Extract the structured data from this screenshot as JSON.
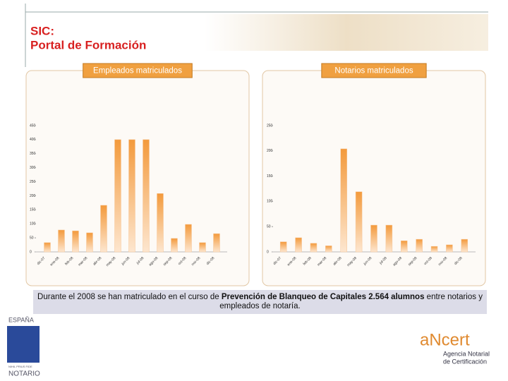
{
  "header": {
    "title": [
      "SIC:",
      "Portal de Formación"
    ]
  },
  "chart_data": [
    {
      "type": "bar",
      "title": "Empleados matriculados",
      "categories": [
        "dic-07",
        "ene-08",
        "feb-08",
        "mar-08",
        "abr-08",
        "may-08",
        "jun-08",
        "jul-08",
        "ago-08",
        "sep-08",
        "oct-08",
        "nov-08",
        "dic-08"
      ],
      "values": [
        33,
        78,
        75,
        68,
        166,
        400,
        400,
        400,
        208,
        48,
        98,
        33,
        65
      ],
      "color": "#f39a3c",
      "ylim": [
        0,
        450
      ],
      "yticks": [
        0,
        50,
        100,
        150,
        200,
        250,
        300,
        350,
        400,
        450
      ]
    },
    {
      "type": "bar",
      "title": "Notarios matriculados",
      "categories": [
        "dic-07",
        "ene-08",
        "feb-08",
        "mar-08",
        "abr-08",
        "may-08",
        "jun-08",
        "jul-08",
        "ago-08",
        "sep-08",
        "oct-08",
        "nov-08",
        "dic-08"
      ],
      "values": [
        20,
        28,
        17,
        12,
        204,
        119,
        53,
        53,
        22,
        25,
        11,
        14,
        25
      ],
      "color": "#f39a3c",
      "ylim": [
        0,
        250
      ],
      "yticks": [
        0,
        50,
        100,
        150,
        200,
        250
      ]
    }
  ],
  "note": {
    "before": "Durante el 2008 se han matriculado en el curso de ",
    "bold": "Prevención de Blanqueo de Capitales 2.564 alumnos",
    "after": " entre notarios y empleados de notaría."
  },
  "logos": {
    "left": [
      "ESPAÑA",
      "NIHIL PRIUS FIDE",
      "NOTARIO"
    ],
    "right": [
      "aNcert",
      "Agencia Notarial",
      "de Certificación"
    ]
  }
}
